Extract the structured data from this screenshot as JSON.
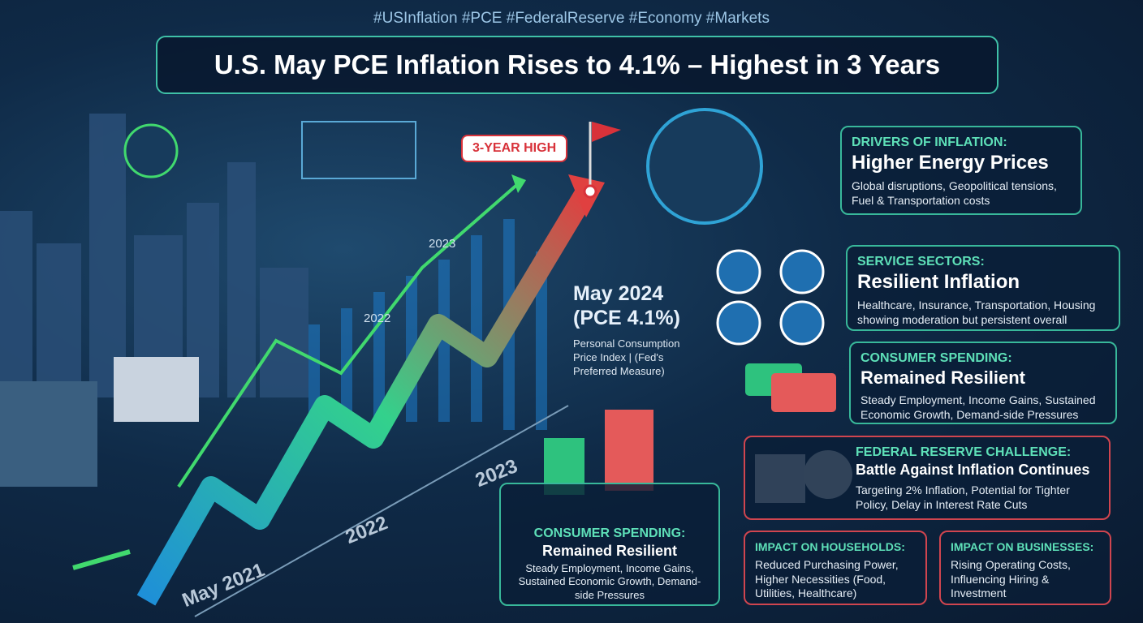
{
  "header": {
    "hashtags": "#USInflation #PCE #FederalReserve #Economy #Markets",
    "title": "U.S. May PCE Inflation Rises to 4.1% – Highest in 3 Years"
  },
  "chart": {
    "badge": "3-YEAR HIGH",
    "small_labels": [
      "2023",
      "2022"
    ],
    "axis_labels": [
      "May 2021",
      "2022",
      "2023"
    ],
    "callout": {
      "date": "May 2024",
      "value": "(PCE 4.1%)",
      "description": "Personal Consumption Price Index | (Fed's Preferred Measure)"
    }
  },
  "panels": [
    {
      "heading": "DRIVERS OF INFLATION:",
      "subtitle": "Higher Energy Prices",
      "body": "Global disruptions, Geopolitical tensions, Fuel & Transportation costs"
    },
    {
      "heading": "SERVICE SECTORS:",
      "subtitle": "Resilient Inflation",
      "body": "Healthcare, Insurance, Transportation, Housing showing moderation but persistent overall"
    },
    {
      "heading": "CONSUMER SPENDING:",
      "subtitle": "Remained Resilient",
      "body": "Steady Employment, Income Gains, Sustained Economic Growth, Demand-side Pressures"
    },
    {
      "heading": "FEDERAL RESERVE CHALLENGE:",
      "subtitle": "Battle Against Inflation Continues",
      "body": "Targeting 2% Inflation, Potential for Tighter Policy, Delay in Interest Rate Cuts"
    },
    {
      "heading": "IMPACT ON HOUSEHOLDS:",
      "body": "Reduced Purchasing Power, Higher Necessities (Food, Utilities, Healthcare)"
    },
    {
      "heading": "IMPACT ON BUSINESSES:",
      "body": "Rising Operating Costs, Influencing Hiring & Investment"
    }
  ],
  "bottom_panel": {
    "heading": "CONSUMER SPENDING:",
    "subtitle": "Remained Resilient",
    "body": "Steady Employment, Income Gains, Sustained Economic Growth, Demand-side Pressures"
  }
}
